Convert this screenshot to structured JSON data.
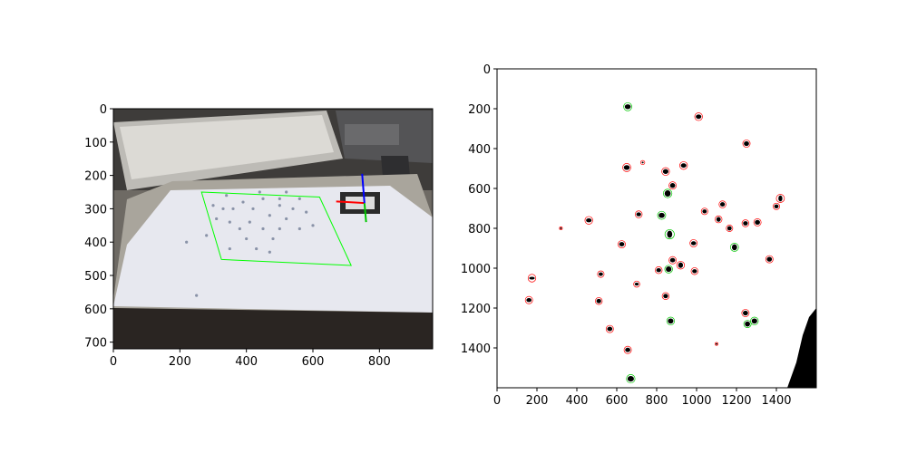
{
  "chart_data": [
    {
      "type": "image",
      "description_labels": [],
      "x_ticks": [
        0,
        200,
        400,
        600,
        800
      ],
      "y_ticks": [
        0,
        100,
        200,
        300,
        400,
        500,
        600,
        700
      ],
      "xlim": [
        0,
        960
      ],
      "ylim": [
        720,
        0
      ],
      "grid": false,
      "overlays": {
        "board_outline_color": "#00ff00",
        "axis_colors": {
          "x": "#ff0000",
          "y": "#00c800",
          "z": "#0000ff"
        },
        "board_outline_points": [
          [
            265,
            250
          ],
          [
            620,
            265
          ],
          [
            715,
            470
          ],
          [
            325,
            452
          ]
        ],
        "origin": [
          755,
          283
        ],
        "x_axis_end": [
          670,
          278
        ],
        "y_axis_end": [
          760,
          340
        ],
        "z_axis_end": [
          748,
          195
        ]
      },
      "scene_dots": [
        [
          300,
          290
        ],
        [
          340,
          260
        ],
        [
          360,
          300
        ],
        [
          390,
          280
        ],
        [
          420,
          300
        ],
        [
          450,
          270
        ],
        [
          470,
          320
        ],
        [
          500,
          290
        ],
        [
          520,
          330
        ],
        [
          410,
          340
        ],
        [
          380,
          360
        ],
        [
          450,
          360
        ],
        [
          480,
          390
        ],
        [
          540,
          300
        ],
        [
          560,
          360
        ],
        [
          600,
          350
        ],
        [
          430,
          420
        ],
        [
          470,
          430
        ],
        [
          280,
          380
        ],
        [
          350,
          420
        ],
        [
          520,
          250
        ],
        [
          560,
          270
        ],
        [
          310,
          330
        ],
        [
          440,
          250
        ],
        [
          500,
          360
        ],
        [
          330,
          300
        ],
        [
          580,
          310
        ],
        [
          400,
          390
        ],
        [
          500,
          270
        ],
        [
          350,
          340
        ],
        [
          250,
          560
        ],
        [
          220,
          400
        ]
      ]
    },
    {
      "type": "image",
      "description_labels": [],
      "x_ticks": [
        0,
        200,
        400,
        600,
        800,
        1000,
        1200,
        1400
      ],
      "y_ticks": [
        0,
        200,
        400,
        600,
        800,
        1000,
        1200,
        1400
      ],
      "xlim": [
        0,
        1600
      ],
      "ylim": [
        1600,
        0
      ],
      "grid": false,
      "blob_color": "#000000",
      "markers": {
        "red": "#ff0000",
        "green": "#00c800"
      },
      "blobs": [
        [
          655,
          190,
          30,
          24,
          1
        ],
        [
          1010,
          240,
          28,
          22,
          0
        ],
        [
          1250,
          375,
          26,
          24,
          0
        ],
        [
          650,
          495,
          30,
          24,
          0
        ],
        [
          730,
          470,
          10,
          8,
          0
        ],
        [
          845,
          515,
          28,
          24,
          0
        ],
        [
          935,
          485,
          28,
          22,
          0
        ],
        [
          880,
          585,
          26,
          24,
          0
        ],
        [
          855,
          625,
          30,
          32,
          1
        ],
        [
          1130,
          680,
          24,
          22,
          0
        ],
        [
          1040,
          715,
          22,
          20,
          0
        ],
        [
          825,
          735,
          30,
          26,
          1
        ],
        [
          710,
          730,
          24,
          20,
          0
        ],
        [
          1420,
          650,
          20,
          30,
          0
        ],
        [
          1400,
          690,
          22,
          20,
          0
        ],
        [
          460,
          760,
          28,
          20,
          0
        ],
        [
          1110,
          755,
          22,
          24,
          0
        ],
        [
          1245,
          775,
          24,
          22,
          0
        ],
        [
          1305,
          770,
          26,
          24,
          0
        ],
        [
          1165,
          800,
          22,
          22,
          0
        ],
        [
          865,
          830,
          26,
          36,
          1
        ],
        [
          985,
          875,
          26,
          20,
          0
        ],
        [
          625,
          880,
          26,
          22,
          0
        ],
        [
          1190,
          895,
          26,
          30,
          1
        ],
        [
          1365,
          955,
          26,
          24,
          0
        ],
        [
          880,
          960,
          26,
          22,
          0
        ],
        [
          920,
          985,
          24,
          28,
          0
        ],
        [
          860,
          1005,
          28,
          28,
          1
        ],
        [
          990,
          1015,
          24,
          20,
          0
        ],
        [
          810,
          1010,
          24,
          20,
          0
        ],
        [
          520,
          1030,
          22,
          18,
          0
        ],
        [
          700,
          1080,
          20,
          14,
          0
        ],
        [
          845,
          1140,
          24,
          22,
          0
        ],
        [
          510,
          1165,
          24,
          22,
          0
        ],
        [
          160,
          1160,
          26,
          20,
          0
        ],
        [
          175,
          1050,
          28,
          14,
          0
        ],
        [
          1245,
          1225,
          26,
          24,
          0
        ],
        [
          1255,
          1280,
          26,
          26,
          1
        ],
        [
          1290,
          1265,
          28,
          26,
          1
        ],
        [
          870,
          1265,
          28,
          26,
          1
        ],
        [
          565,
          1305,
          26,
          22,
          0
        ],
        [
          655,
          1410,
          26,
          22,
          0
        ],
        [
          670,
          1555,
          32,
          28,
          1
        ],
        [
          320,
          800,
          4,
          4,
          0
        ],
        [
          1100,
          1380,
          4,
          4,
          0
        ]
      ]
    }
  ]
}
